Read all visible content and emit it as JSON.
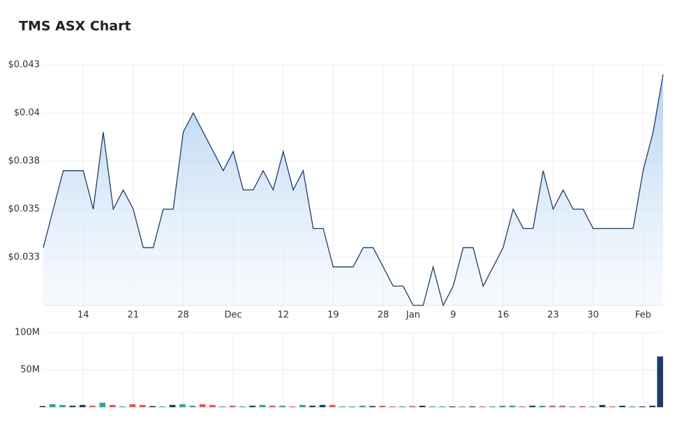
{
  "chart_data": [
    {
      "type": "area",
      "title": "TMS ASX Chart",
      "color": "#1f3b66",
      "categories": [
        null,
        null,
        null,
        null,
        "14",
        null,
        null,
        null,
        null,
        "21",
        null,
        null,
        null,
        null,
        "28",
        null,
        null,
        null,
        null,
        "Dec",
        null,
        null,
        null,
        null,
        "12",
        null,
        null,
        null,
        null,
        "19",
        null,
        null,
        null,
        null,
        "28",
        null,
        null,
        "Jan",
        null,
        null,
        null,
        "9",
        null,
        null,
        null,
        null,
        "16",
        null,
        null,
        null,
        null,
        "23",
        null,
        null,
        null,
        "30",
        null,
        null,
        null,
        null,
        "Feb",
        null,
        null
      ],
      "values": [
        0.033,
        0.035,
        0.037,
        0.037,
        0.037,
        0.035,
        0.039,
        0.035,
        0.036,
        0.035,
        0.033,
        0.033,
        0.035,
        0.035,
        0.039,
        0.04,
        0.039,
        0.038,
        0.037,
        0.038,
        0.036,
        0.036,
        0.037,
        0.036,
        0.038,
        0.036,
        0.037,
        0.034,
        0.034,
        0.032,
        0.032,
        0.032,
        0.033,
        0.033,
        0.032,
        0.031,
        0.031,
        0.03,
        0.03,
        0.032,
        0.03,
        0.031,
        0.033,
        0.033,
        0.031,
        0.032,
        0.033,
        0.035,
        0.034,
        0.034,
        0.037,
        0.035,
        0.036,
        0.035,
        0.035,
        0.034,
        0.034,
        0.034,
        0.034,
        0.034,
        0.037,
        0.039,
        0.042
      ],
      "ylim": [
        0.03,
        0.0425
      ],
      "yticks": [
        {
          "value": 0.0425,
          "label": "$0.043"
        },
        {
          "value": 0.04,
          "label": "$0.04"
        },
        {
          "value": 0.0375,
          "label": "$0.038"
        },
        {
          "value": 0.035,
          "label": "$0.035"
        },
        {
          "value": 0.0325,
          "label": "$0.033"
        }
      ],
      "grid": true
    },
    {
      "type": "bar",
      "values": [
        1500000,
        4000000,
        3000000,
        2000000,
        3000000,
        2000000,
        6000000,
        3000000,
        1000000,
        4000000,
        3000000,
        1500000,
        1000000,
        3000000,
        4000000,
        2000000,
        4000000,
        3000000,
        1000000,
        2000000,
        1000000,
        2000000,
        3000000,
        2000000,
        2000000,
        1000000,
        3000000,
        2000000,
        3000000,
        3000000,
        1000000,
        1000000,
        2000000,
        1500000,
        2000000,
        1000000,
        1000000,
        1500000,
        2000000,
        1000000,
        1000000,
        1000000,
        1000000,
        1000000,
        1000000,
        1000000,
        2000000,
        2000000,
        1000000,
        2000000,
        2000000,
        2000000,
        2000000,
        1000000,
        1500000,
        1000000,
        3000000,
        1000000,
        2000000,
        1000000,
        1000000,
        2000000,
        68000000
      ],
      "colors": [
        "#1e3a6b",
        "#26a69a",
        "#26a69a",
        "#1e3a6b",
        "#1e3a6b",
        "#ef5350",
        "#26a69a",
        "#ef5350",
        "#26a69a",
        "#ef5350",
        "#ef5350",
        "#1e3a6b",
        "#26a69a",
        "#1e3a6b",
        "#26a69a",
        "#26a69a",
        "#ef5350",
        "#ef5350",
        "#26a69a",
        "#ef5350",
        "#26a69a",
        "#1e3a6b",
        "#26a69a",
        "#ef5350",
        "#26a69a",
        "#ef5350",
        "#26a69a",
        "#1e3a6b",
        "#1e3a6b",
        "#ef5350",
        "#26a69a",
        "#26a69a",
        "#26a69a",
        "#1e3a6b",
        "#ef5350",
        "#ef5350",
        "#26a69a",
        "#ef5350",
        "#1e3a6b",
        "#26a69a",
        "#26a69a",
        "#1e3a6b",
        "#26a69a",
        "#1e3a6b",
        "#ef5350",
        "#26a69a",
        "#26a69a",
        "#26a69a",
        "#ef5350",
        "#1e3a6b",
        "#26a69a",
        "#ef5350",
        "#ef5350",
        "#26a69a",
        "#ef5350",
        "#26a69a",
        "#1e3a6b",
        "#ef5350",
        "#1e3a6b",
        "#26a69a",
        "#1e3a6b",
        "#1e3a6b",
        "#1e3a6b"
      ],
      "ylim": [
        0,
        100000000
      ],
      "yticks": [
        {
          "value": 100000000,
          "label": "100M"
        },
        {
          "value": 50000000,
          "label": "50M"
        }
      ],
      "grid": true
    }
  ]
}
